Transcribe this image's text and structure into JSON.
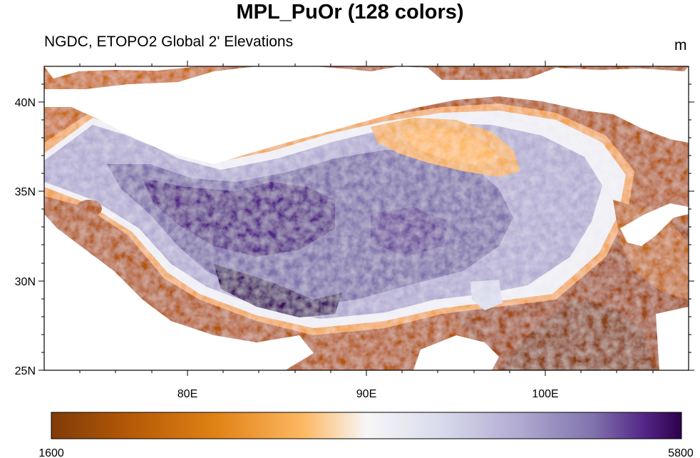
{
  "title": "MPL_PuOr (128 colors)",
  "subtitle": "NGDC, ETOPO2 Global 2' Elevations",
  "units": "m",
  "map": {
    "lon_range": [
      72,
      108
    ],
    "lat_range": [
      25,
      42
    ],
    "lat_tick_labels": [
      "40N",
      "35N",
      "30N",
      "25N"
    ],
    "lon_tick_labels": [
      "80E",
      "90E",
      "100E"
    ],
    "colors": {
      "brown": "#7f3b08",
      "orange": "#e08214",
      "light_orange": "#fdb863",
      "white": "#f7f7f7",
      "lavender": "#b2abd2",
      "purple": "#8073ac",
      "dark_purple": "#2d004b"
    },
    "masked_color": "#ffffff"
  },
  "colorbar": {
    "min_label": "1600",
    "max_label": "5800",
    "min": 1600,
    "max": 5800,
    "n_colors": 128,
    "orientation": "horizontal"
  }
}
